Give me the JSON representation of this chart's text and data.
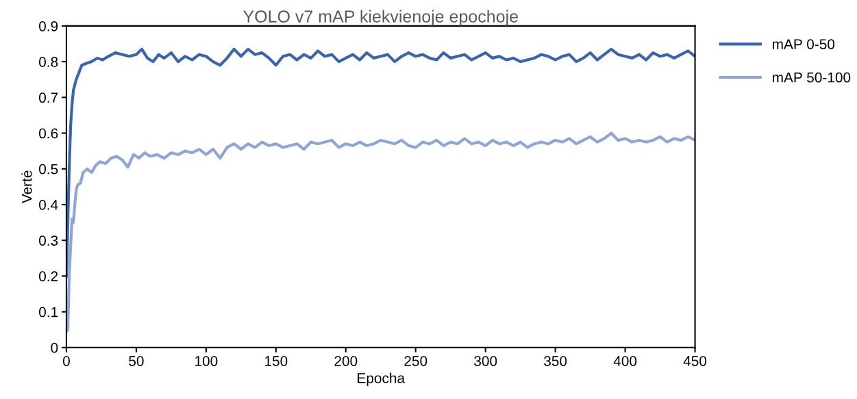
{
  "chart_data": {
    "type": "line",
    "title": "YOLO v7 mAP kiekvienoje epochoje",
    "xlabel": "Epocha",
    "ylabel": "Vertė",
    "xlim": [
      0,
      450
    ],
    "xticks": [
      0,
      50,
      100,
      150,
      200,
      250,
      300,
      350,
      400,
      450
    ],
    "ylim": [
      0,
      0.9
    ],
    "yticks": [
      0,
      0.1,
      0.2,
      0.3,
      0.4,
      0.5,
      0.6,
      0.7,
      0.8,
      0.9
    ],
    "grid": false,
    "legend": "right",
    "marker": "none",
    "line_style": "solid",
    "series": [
      {
        "name": "mAP 0-50",
        "color": "#3a64ad",
        "x": [
          0,
          1,
          2,
          3,
          4,
          5,
          7,
          9,
          11,
          14,
          18,
          22,
          26,
          30,
          35,
          40,
          45,
          50,
          54,
          58,
          62,
          66,
          70,
          75,
          80,
          85,
          90,
          95,
          100,
          105,
          110,
          115,
          120,
          125,
          130,
          135,
          140,
          145,
          150,
          155,
          160,
          165,
          170,
          175,
          180,
          185,
          190,
          195,
          200,
          205,
          210,
          215,
          220,
          225,
          230,
          235,
          240,
          245,
          250,
          255,
          260,
          265,
          270,
          275,
          280,
          285,
          290,
          295,
          300,
          305,
          310,
          315,
          320,
          325,
          330,
          335,
          340,
          345,
          350,
          355,
          360,
          365,
          370,
          375,
          380,
          385,
          390,
          395,
          400,
          405,
          410,
          415,
          420,
          425,
          430,
          435,
          440,
          445,
          450
        ],
        "values": [
          0.2,
          0.35,
          0.5,
          0.62,
          0.68,
          0.72,
          0.75,
          0.77,
          0.79,
          0.795,
          0.8,
          0.81,
          0.805,
          0.815,
          0.825,
          0.82,
          0.815,
          0.82,
          0.835,
          0.81,
          0.8,
          0.82,
          0.81,
          0.825,
          0.8,
          0.815,
          0.805,
          0.82,
          0.815,
          0.8,
          0.79,
          0.81,
          0.835,
          0.815,
          0.835,
          0.82,
          0.825,
          0.81,
          0.79,
          0.815,
          0.82,
          0.805,
          0.82,
          0.81,
          0.83,
          0.815,
          0.82,
          0.8,
          0.81,
          0.82,
          0.805,
          0.825,
          0.81,
          0.815,
          0.82,
          0.8,
          0.815,
          0.825,
          0.815,
          0.82,
          0.81,
          0.805,
          0.825,
          0.81,
          0.815,
          0.82,
          0.805,
          0.815,
          0.825,
          0.81,
          0.815,
          0.805,
          0.81,
          0.8,
          0.805,
          0.81,
          0.82,
          0.815,
          0.805,
          0.815,
          0.82,
          0.8,
          0.81,
          0.825,
          0.805,
          0.82,
          0.835,
          0.82,
          0.815,
          0.81,
          0.82,
          0.805,
          0.825,
          0.815,
          0.82,
          0.81,
          0.82,
          0.83,
          0.815
        ]
      },
      {
        "name": "mAP 50-100",
        "color": "#8ea5d5",
        "x": [
          0,
          1,
          2,
          3,
          4,
          5,
          6,
          7,
          8,
          10,
          12,
          15,
          18,
          21,
          24,
          28,
          32,
          36,
          40,
          44,
          48,
          52,
          56,
          60,
          65,
          70,
          75,
          80,
          85,
          90,
          95,
          100,
          105,
          110,
          115,
          120,
          125,
          130,
          135,
          140,
          145,
          150,
          155,
          160,
          165,
          170,
          175,
          180,
          185,
          190,
          195,
          200,
          205,
          210,
          215,
          220,
          225,
          230,
          235,
          240,
          245,
          250,
          255,
          260,
          265,
          270,
          275,
          280,
          285,
          290,
          295,
          300,
          305,
          310,
          315,
          320,
          325,
          330,
          335,
          340,
          345,
          350,
          355,
          360,
          365,
          370,
          375,
          380,
          385,
          390,
          395,
          400,
          405,
          410,
          415,
          420,
          425,
          430,
          435,
          440,
          445,
          450
        ],
        "values": [
          0.045,
          0.05,
          0.2,
          0.28,
          0.36,
          0.35,
          0.4,
          0.44,
          0.455,
          0.46,
          0.49,
          0.5,
          0.49,
          0.51,
          0.52,
          0.515,
          0.53,
          0.535,
          0.525,
          0.505,
          0.54,
          0.53,
          0.545,
          0.535,
          0.54,
          0.53,
          0.545,
          0.54,
          0.55,
          0.545,
          0.555,
          0.54,
          0.555,
          0.53,
          0.56,
          0.57,
          0.555,
          0.57,
          0.56,
          0.575,
          0.565,
          0.57,
          0.56,
          0.565,
          0.57,
          0.555,
          0.575,
          0.57,
          0.575,
          0.58,
          0.56,
          0.57,
          0.565,
          0.575,
          0.565,
          0.57,
          0.58,
          0.575,
          0.57,
          0.58,
          0.565,
          0.56,
          0.575,
          0.57,
          0.58,
          0.565,
          0.575,
          0.57,
          0.585,
          0.57,
          0.575,
          0.565,
          0.58,
          0.57,
          0.575,
          0.565,
          0.575,
          0.56,
          0.57,
          0.575,
          0.57,
          0.58,
          0.575,
          0.585,
          0.57,
          0.58,
          0.59,
          0.575,
          0.585,
          0.6,
          0.58,
          0.585,
          0.575,
          0.58,
          0.575,
          0.58,
          0.59,
          0.575,
          0.585,
          0.58,
          0.59,
          0.58
        ]
      }
    ]
  }
}
